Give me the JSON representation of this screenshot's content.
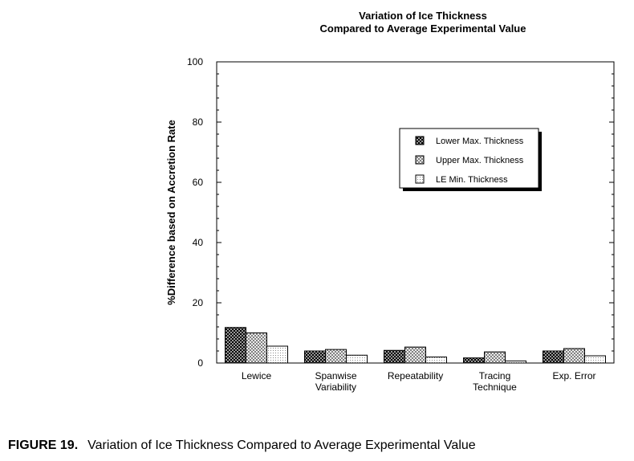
{
  "chart_data": {
    "type": "bar",
    "title": [
      "Variation of Ice Thickness",
      "Compared to Average Experimental Value"
    ],
    "ylabel": "%Difference based on Accretion Rate",
    "xlabel": "",
    "ylim": [
      0,
      100
    ],
    "yticks": [
      0,
      20,
      40,
      60,
      80,
      100
    ],
    "grid": false,
    "legend_position": "upper-right",
    "categories": [
      [
        "Lewice"
      ],
      [
        "Spanwise",
        "Variability"
      ],
      [
        "Repeatability"
      ],
      [
        "Tracing",
        "Technique"
      ],
      [
        "Exp. Error"
      ]
    ],
    "series": [
      {
        "name": "Lower Max. Thickness",
        "pattern": "dark-crosshatch",
        "values": [
          11.8,
          4.0,
          4.2,
          1.7,
          4.0
        ]
      },
      {
        "name": "Upper Max. Thickness",
        "pattern": "medium-crosshatch",
        "values": [
          10.0,
          4.5,
          5.3,
          3.7,
          4.8
        ]
      },
      {
        "name": "LE Min. Thickness",
        "pattern": "light-dots",
        "values": [
          5.6,
          2.6,
          2.0,
          0.7,
          2.4
        ]
      }
    ]
  },
  "caption": {
    "figure_label": "FIGURE 19.",
    "text": "Variation of Ice Thickness Compared to Average Experimental Value"
  }
}
